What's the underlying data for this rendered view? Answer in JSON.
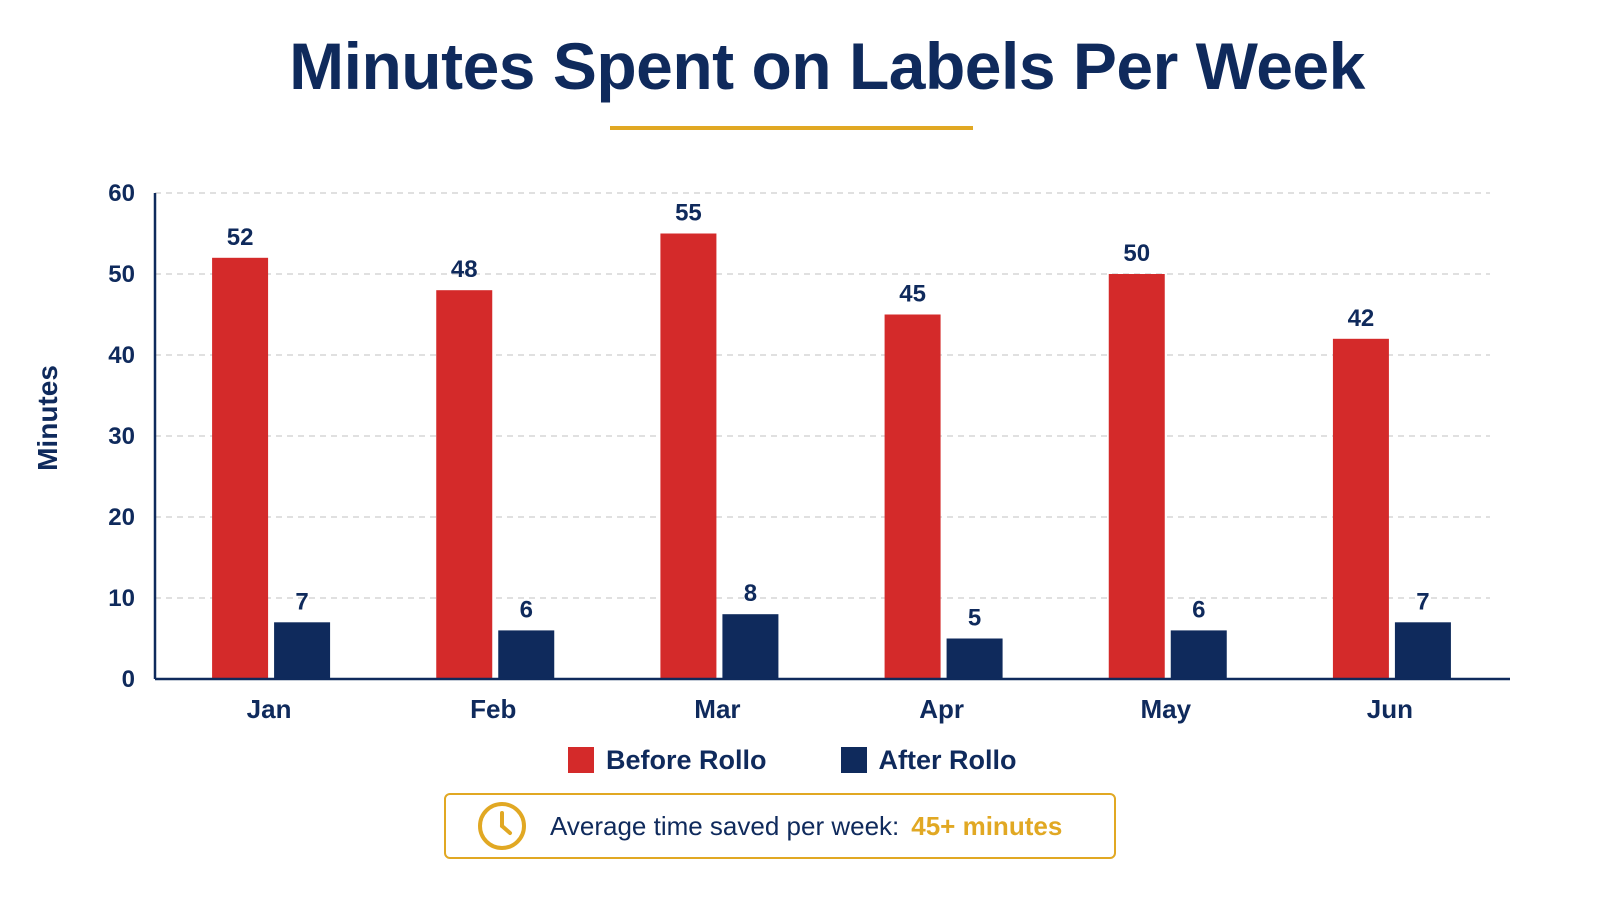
{
  "chart_data": {
    "type": "bar",
    "title": "Minutes Spent on Labels Per Week",
    "xlabel": "",
    "ylabel": "Minutes",
    "categories": [
      "Jan",
      "Feb",
      "Mar",
      "Apr",
      "May",
      "Jun"
    ],
    "series": [
      {
        "name": "Before Rollo",
        "color": "#d42a2a",
        "values": [
          52,
          48,
          55,
          45,
          50,
          42
        ]
      },
      {
        "name": "After Rollo",
        "color": "#0f2a5c",
        "values": [
          7,
          6,
          8,
          5,
          6,
          7
        ]
      }
    ],
    "ylim": [
      0,
      60
    ],
    "yticks": [
      0,
      10,
      20,
      30,
      40,
      50,
      60
    ],
    "grid": true,
    "legend_position": "bottom-center"
  },
  "colors": {
    "title": "#0f2a5c",
    "accent": "#e1a823",
    "grid": "#d6d6d6"
  },
  "callout": {
    "icon": "clock-icon",
    "text": "Average time saved per week:",
    "highlight": "45+ minutes"
  }
}
